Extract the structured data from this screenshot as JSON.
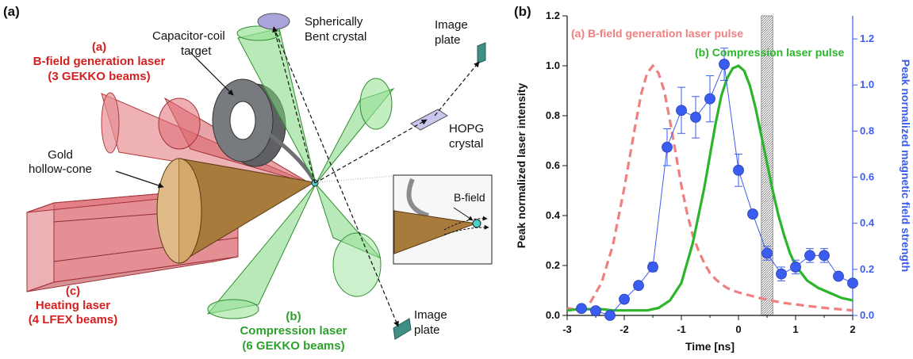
{
  "panel_a": {
    "panel_label": "(a)",
    "labels": {
      "bfield_tag": "(a)",
      "bfield_line1": "B-field generation laser",
      "bfield_line2": "(3 GEKKO beams)",
      "capcoil_line1": "Capacitor-coil",
      "capcoil_line2": "target",
      "sph_line1": "Spherically",
      "sph_line2": "Bent crystal",
      "plate_top_line1": "Image",
      "plate_top_line2": "plate",
      "hopg_line1": "HOPG",
      "hopg_line2": "crystal",
      "gold_line1": "Gold",
      "gold_line2": "hollow-cone",
      "inset_bfield": "B-field",
      "heat_tag": "(c)",
      "heat_line1": "Heating laser",
      "heat_line2": "(4 LFEX beams)",
      "comp_tag": "(b)",
      "comp_line1": "Compression laser",
      "comp_line2": "(6 GEKKO beams)",
      "plate_bot_line1": "Image",
      "plate_bot_line2": "plate"
    },
    "colors": {
      "red_text": "#d42020",
      "green_text": "#2ea02e",
      "red_beam": "#d9474f",
      "green_beam": "#5fc85f",
      "gold_cone": "#a87a3c",
      "coil": "#6d6f73",
      "crystal": "#9f9fd8",
      "plate": "#3f8f86"
    }
  },
  "panel_b": {
    "panel_label": "(b)",
    "legend_a": "(a) B-field generation laser pulse",
    "legend_b": "(b) Compression laser pulse",
    "colors": {
      "pulse_a": "#f07f80",
      "pulse_b": "#2bb52b",
      "bfield": "#3b5cf0",
      "right_axis": "#3b5cf0"
    },
    "chart_data": {
      "type": "line",
      "xlabel": "Time [ns]",
      "ylabel_left": "Peak normalized laser intensity",
      "ylabel_right": "Peak normalized magnetic field strength",
      "xlim": [
        -3,
        2
      ],
      "ylim_left": [
        0,
        1.2
      ],
      "ylim_right": [
        0,
        1.3
      ],
      "x_ticks": [
        "-3",
        "-2",
        "-1",
        "0",
        "1",
        "2"
      ],
      "y_ticks_left": [
        "0.0",
        "0.2",
        "0.4",
        "0.6",
        "0.8",
        "1.0",
        "1.2"
      ],
      "y_ticks_right": [
        "0.0",
        "0.2",
        "0.4",
        "0.6",
        "0.8",
        "1.0",
        "1.2"
      ],
      "shaded_interval": [
        0.4,
        0.6
      ],
      "series": [
        {
          "name": "(a) B-field generation laser pulse",
          "axis": "left",
          "style": "dashed",
          "x": [
            -3.0,
            -2.8,
            -2.6,
            -2.4,
            -2.2,
            -2.0,
            -1.9,
            -1.8,
            -1.7,
            -1.6,
            -1.5,
            -1.4,
            -1.3,
            -1.2,
            -1.1,
            -1.0,
            -0.9,
            -0.8,
            -0.7,
            -0.6,
            -0.5,
            -0.4,
            -0.3,
            -0.2,
            -0.1,
            0.0,
            0.2,
            0.4,
            0.6,
            0.8,
            1.0,
            1.2,
            1.4,
            1.6,
            1.8,
            2.0
          ],
          "y": [
            0.03,
            0.02,
            0.05,
            0.13,
            0.28,
            0.51,
            0.64,
            0.77,
            0.89,
            0.97,
            1.0,
            0.97,
            0.9,
            0.78,
            0.65,
            0.52,
            0.41,
            0.32,
            0.26,
            0.21,
            0.17,
            0.145,
            0.125,
            0.11,
            0.1,
            0.092,
            0.08,
            0.068,
            0.058,
            0.05,
            0.044,
            0.038,
            0.033,
            0.028,
            0.024,
            0.02
          ]
        },
        {
          "name": "(b) Compression laser pulse",
          "axis": "left",
          "style": "solid",
          "x": [
            -3.0,
            -2.8,
            -2.6,
            -2.4,
            -2.2,
            -2.0,
            -1.8,
            -1.6,
            -1.4,
            -1.2,
            -1.0,
            -0.8,
            -0.6,
            -0.5,
            -0.4,
            -0.3,
            -0.2,
            -0.1,
            0.0,
            0.1,
            0.2,
            0.3,
            0.4,
            0.5,
            0.6,
            0.7,
            0.8,
            0.9,
            1.0,
            1.2,
            1.4,
            1.6,
            1.8,
            2.0
          ],
          "y": [
            0.02,
            0.025,
            0.025,
            0.025,
            0.02,
            0.02,
            0.02,
            0.02,
            0.03,
            0.06,
            0.13,
            0.29,
            0.51,
            0.64,
            0.77,
            0.88,
            0.95,
            0.99,
            1.0,
            0.98,
            0.92,
            0.83,
            0.72,
            0.61,
            0.5,
            0.4,
            0.32,
            0.25,
            0.2,
            0.14,
            0.11,
            0.09,
            0.07,
            0.06
          ]
        },
        {
          "name": "",
          "axis": "right",
          "style": "markers-line",
          "x": [
            -2.75,
            -2.5,
            -2.25,
            -2.0,
            -1.75,
            -1.5,
            -1.25,
            -1.0,
            -0.75,
            -0.5,
            -0.25,
            0.0,
            0.25,
            0.5,
            0.75,
            1.0,
            1.25,
            1.5,
            1.75,
            2.0
          ],
          "y": [
            0.03,
            0.02,
            0.0,
            0.07,
            0.13,
            0.21,
            0.73,
            0.89,
            0.86,
            0.94,
            1.09,
            0.63,
            0.44,
            0.27,
            0.18,
            0.21,
            0.26,
            0.26,
            0.17,
            0.14
          ],
          "err": [
            0.0,
            0.0,
            0.0,
            0.0,
            0.0,
            0.02,
            0.08,
            0.1,
            0.09,
            0.1,
            0.07,
            0.07,
            0.0,
            0.03,
            0.03,
            0.03,
            0.03,
            0.03,
            0.0,
            0.0
          ]
        }
      ]
    }
  }
}
